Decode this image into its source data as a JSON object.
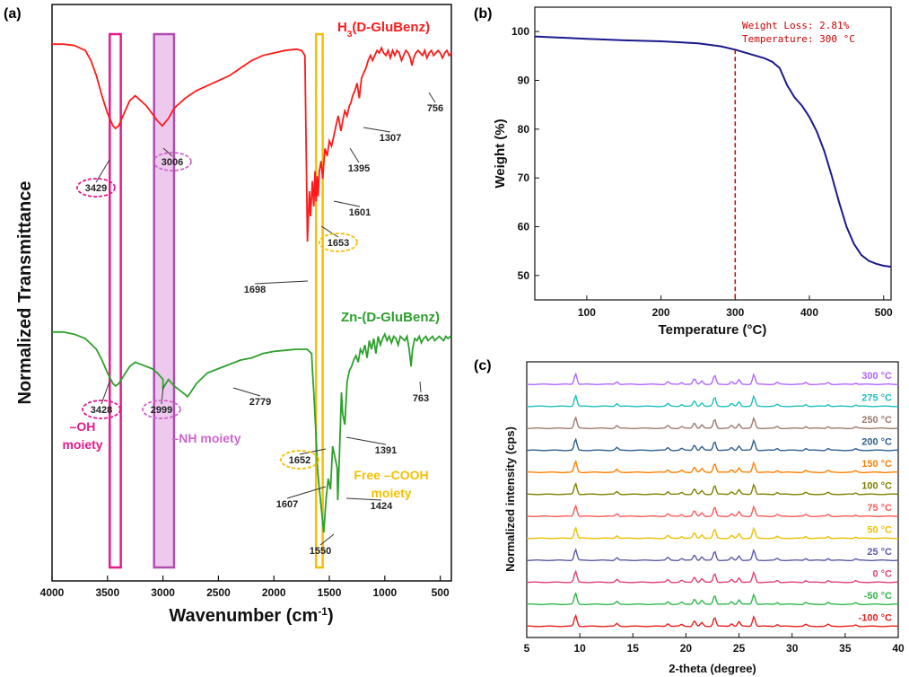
{
  "panel_labels": {
    "a": "(a)",
    "b": "(b)",
    "c": "(c)"
  },
  "chart_data": [
    {
      "type": "line",
      "panel": "(a)",
      "xlabel": "Wavenumber (cm⁻¹)",
      "ylabel": "Normalized Transmittance",
      "xlim": [
        4000,
        400
      ],
      "x_ticks": [
        "4000",
        "3500",
        "3000",
        "2500",
        "2000",
        "1500",
        "1000",
        "500"
      ],
      "series": [
        {
          "name": "H₃(D-GluBenz)",
          "color": "#ff1a1a",
          "x": [
            4000,
            3900,
            3800,
            3700,
            3650,
            3600,
            3550,
            3500,
            3450,
            3429,
            3400,
            3350,
            3300,
            3250,
            3200,
            3150,
            3100,
            3050,
            3006,
            2950,
            2900,
            2800,
            2700,
            2600,
            2500,
            2400,
            2300,
            2200,
            2100,
            2000,
            1900,
            1800,
            1750,
            1720,
            1698,
            1680,
            1670,
            1653,
            1640,
            1630,
            1620,
            1610,
            1601,
            1590,
            1575,
            1560,
            1540,
            1520,
            1500,
            1480,
            1460,
            1440,
            1420,
            1395,
            1380,
            1360,
            1340,
            1320,
            1307,
            1290,
            1270,
            1250,
            1230,
            1210,
            1190,
            1170,
            1150,
            1130,
            1110,
            1090,
            1070,
            1050,
            1030,
            1010,
            990,
            970,
            950,
            930,
            910,
            890,
            870,
            850,
            830,
            810,
            790,
            770,
            756,
            740,
            720,
            700,
            680,
            660,
            640,
            620,
            600,
            580,
            560,
            540,
            520,
            500,
            480,
            460,
            440,
            420,
            400
          ],
          "y": [
            98.5,
            98.5,
            98,
            96,
            92,
            86,
            78,
            71,
            66,
            65,
            66,
            71,
            76,
            78,
            76,
            74,
            71,
            68,
            66,
            69,
            73,
            77,
            80,
            82,
            84,
            86,
            89,
            92,
            94,
            95,
            96,
            96.5,
            96,
            94,
            20,
            40,
            30,
            44,
            34,
            48,
            36,
            46,
            38,
            48,
            52,
            45,
            57,
            54,
            60,
            58,
            62,
            66,
            70,
            64,
            68,
            72,
            70,
            74,
            75,
            78,
            80,
            83,
            77,
            85,
            87,
            89,
            92,
            94,
            92,
            94,
            96,
            95,
            97,
            95,
            94,
            96,
            93,
            96,
            94,
            96,
            95,
            92,
            94,
            96,
            95,
            93,
            90,
            93,
            95,
            96,
            95,
            94,
            96,
            93,
            95,
            96,
            94,
            95,
            96,
            95,
            93,
            95,
            96,
            94,
            95
          ]
        },
        {
          "name": "Zn-(D-GluBenz)",
          "color": "#2ca02c",
          "x": [
            4000,
            3900,
            3800,
            3700,
            3600,
            3550,
            3500,
            3450,
            3428,
            3400,
            3350,
            3300,
            3250,
            3200,
            3150,
            3100,
            3050,
            3000,
            2999,
            2950,
            2900,
            2850,
            2800,
            2779,
            2750,
            2700,
            2600,
            2500,
            2400,
            2300,
            2200,
            2100,
            2000,
            1900,
            1800,
            1700,
            1660,
            1652,
            1640,
            1620,
            1607,
            1590,
            1570,
            1550,
            1530,
            1510,
            1490,
            1470,
            1450,
            1430,
            1424,
            1410,
            1391,
            1380,
            1360,
            1340,
            1320,
            1300,
            1280,
            1260,
            1240,
            1220,
            1200,
            1180,
            1160,
            1140,
            1120,
            1100,
            1080,
            1060,
            1040,
            1020,
            1000,
            980,
            960,
            940,
            920,
            900,
            880,
            860,
            840,
            820,
            800,
            780,
            763,
            750,
            730,
            710,
            690,
            670,
            650,
            630,
            610,
            590,
            570,
            550,
            530,
            510,
            490,
            470,
            450,
            430,
            410,
            400
          ],
          "y": [
            98,
            98,
            97,
            95,
            90,
            85,
            79,
            74,
            73,
            74,
            78,
            82,
            84,
            83,
            82,
            81,
            79,
            76,
            72,
            76,
            73,
            71,
            69,
            68,
            70,
            74,
            79,
            81,
            83,
            85,
            86,
            88,
            89,
            89.5,
            90,
            90,
            88,
            80,
            70,
            50,
            35,
            25,
            15,
            5,
            20,
            30,
            25,
            45,
            40,
            35,
            20,
            40,
            70,
            60,
            55,
            75,
            80,
            82,
            85,
            87,
            84,
            90,
            88,
            92,
            86,
            94,
            90,
            95,
            88,
            96,
            92,
            95,
            97,
            94,
            96,
            93,
            96,
            95,
            92,
            96,
            95,
            94,
            96,
            90,
            82,
            90,
            95,
            94,
            96,
            93,
            95,
            96,
            94,
            95,
            96,
            94,
            95,
            96,
            95,
            94,
            96,
            95,
            96,
            96
          ]
        }
      ],
      "annotations": {
        "h3_peaks": [
          "3429",
          "3006",
          "1698",
          "1653",
          "1601",
          "1395",
          "1307",
          "756"
        ],
        "zn_peaks": [
          "3428",
          "2999",
          "2779",
          "1652",
          "1607",
          "1550",
          "1424",
          "1391",
          "763"
        ],
        "bands": [
          {
            "label": "–OH moiety",
            "label_lines": [
              "–OH",
              "moiety"
            ],
            "color": "#e8198b"
          },
          {
            "label": "–NH moiety",
            "label_lines": [
              "–NH moiety"
            ],
            "color": "#cc66cc"
          },
          {
            "label": "Free –COOH moiety",
            "label_lines": [
              "Free –COOH",
              "moiety"
            ],
            "color": "#f5c000"
          }
        ]
      }
    },
    {
      "type": "line",
      "panel": "(b)",
      "xlabel": "Temperature (°C)",
      "ylabel": "Weight (%)",
      "xlim": [
        30,
        510
      ],
      "ylim": [
        45,
        105
      ],
      "x_ticks": [
        100,
        200,
        300,
        400,
        500
      ],
      "y_ticks": [
        50,
        60,
        70,
        80,
        90,
        100
      ],
      "series": [
        {
          "name": "",
          "color": "#1a1a8c",
          "x": [
            30,
            60,
            100,
            150,
            200,
            250,
            280,
            300,
            320,
            340,
            350,
            360,
            370,
            380,
            390,
            400,
            410,
            420,
            430,
            440,
            450,
            460,
            470,
            480,
            490,
            500,
            510
          ],
          "y": [
            99,
            98.8,
            98.5,
            98.2,
            98.0,
            97.6,
            97.0,
            96.3,
            95.4,
            94.5,
            93.8,
            92.5,
            89.0,
            86.5,
            84.8,
            82.5,
            79.5,
            75.5,
            70.5,
            65.0,
            60.0,
            56.5,
            54.2,
            53.0,
            52.4,
            52.0,
            51.8
          ]
        }
      ],
      "annotation": {
        "line1": "Weight Loss: 2.81%",
        "line2": "Temperature: 300 °C",
        "color": "#cc0000",
        "x_marker": 300
      }
    },
    {
      "type": "line",
      "panel": "(c)",
      "xlabel": "2-theta (degree)",
      "ylabel": "Normalized intensity (cps)",
      "xlim": [
        5,
        40
      ],
      "x_ticks": [
        5,
        10,
        15,
        20,
        25,
        30,
        35,
        40
      ],
      "peaks_2theta": [
        9.6,
        13.5,
        18.3,
        19.6,
        20.8,
        21.5,
        22.7,
        24.3,
        25.0,
        26.4,
        28.6,
        31.3,
        33.4,
        36.0
      ],
      "series": [
        {
          "name": "300 °C",
          "color": "#b266ff"
        },
        {
          "name": "275 °C",
          "color": "#1fbfbf"
        },
        {
          "name": "250 °C",
          "color": "#9e7a6e"
        },
        {
          "name": "200 °C",
          "color": "#2e5f8f"
        },
        {
          "name": "150 °C",
          "color": "#ff8000"
        },
        {
          "name": "100 °C",
          "color": "#808000"
        },
        {
          "name": "75 °C",
          "color": "#ff5a5a"
        },
        {
          "name": "50 °C",
          "color": "#f0c000"
        },
        {
          "name": "25 °C",
          "color": "#5a5aa8"
        },
        {
          "name": "0 °C",
          "color": "#e0407a"
        },
        {
          "name": "-50 °C",
          "color": "#2fb84a"
        },
        {
          "name": "-100 °C",
          "color": "#e82020"
        }
      ]
    }
  ]
}
